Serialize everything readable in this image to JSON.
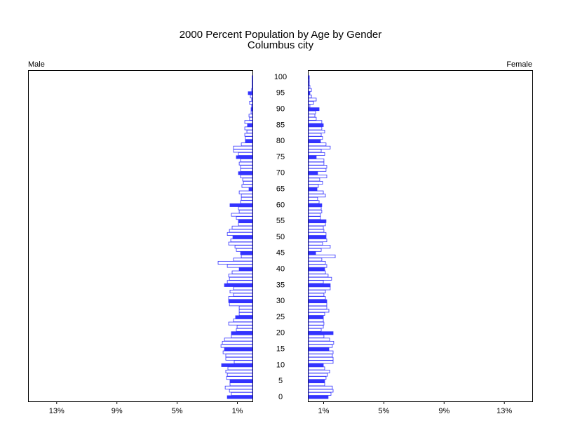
{
  "chart_data": {
    "type": "pyramid",
    "title": "2000 Percent Population by Age by Gender",
    "subtitle": "Columbus city",
    "categories": [
      "0",
      null,
      null,
      null,
      null,
      "5",
      null,
      null,
      null,
      null,
      "10",
      null,
      null,
      null,
      null,
      "15",
      null,
      null,
      null,
      null,
      "20",
      null,
      null,
      null,
      null,
      "25",
      null,
      null,
      null,
      null,
      "30",
      null,
      null,
      null,
      null,
      "35",
      null,
      null,
      null,
      null,
      "40",
      null,
      null,
      null,
      null,
      "45",
      null,
      null,
      null,
      null,
      "50",
      null,
      null,
      null,
      null,
      "55",
      null,
      null,
      null,
      null,
      "60",
      null,
      null,
      null,
      null,
      "65",
      null,
      null,
      null,
      null,
      "70",
      null,
      null,
      null,
      null,
      "75",
      null,
      null,
      null,
      null,
      "80",
      null,
      null,
      null,
      null,
      "85",
      null,
      null,
      null,
      null,
      "90",
      null,
      null,
      null,
      null,
      "95",
      null,
      null,
      null,
      null,
      "100"
    ],
    "series": [
      {
        "name": "Male",
        "color": "#3333ff",
        "values": [
          1.67,
          1.4,
          1.53,
          1.81,
          1.49,
          1.49,
          1.72,
          1.67,
          1.77,
          1.63,
          2.05,
          1.21,
          1.77,
          1.77,
          1.95,
          1.86,
          2.09,
          2.0,
          1.86,
          1.4,
          1.4,
          1.07,
          1.02,
          1.58,
          1.26,
          1.12,
          0.88,
          0.88,
          0.88,
          1.53,
          1.58,
          1.58,
          1.26,
          1.49,
          1.26,
          1.86,
          1.67,
          1.53,
          1.58,
          1.35,
          0.88,
          1.67,
          2.28,
          1.26,
          0.74,
          0.79,
          1.07,
          1.16,
          1.58,
          1.44,
          1.3,
          1.67,
          1.53,
          1.35,
          0.93,
          0.93,
          1.07,
          1.4,
          0.88,
          0.93,
          1.49,
          0.79,
          0.74,
          0.74,
          0.88,
          0.23,
          0.7,
          0.6,
          0.65,
          0.79,
          0.93,
          0.79,
          0.79,
          0.88,
          0.79,
          1.07,
          0.93,
          1.26,
          1.26,
          0.74,
          0.47,
          0.47,
          0.51,
          0.37,
          0.51,
          0.33,
          0.51,
          0.19,
          0.23,
          0.09,
          0.09,
          0.05,
          0.19,
          0.05,
          0.14,
          0.28,
          0.05,
          0.02,
          0.02,
          0.02,
          0.02
        ]
      },
      {
        "name": "Female",
        "color": "#3333ff",
        "values": [
          1.3,
          1.49,
          1.63,
          1.58,
          1.07,
          1.07,
          1.16,
          1.26,
          1.4,
          1.07,
          0.98,
          1.63,
          1.63,
          1.58,
          1.63,
          1.35,
          1.58,
          1.67,
          1.4,
          1.02,
          1.63,
          0.84,
          0.98,
          1.02,
          0.98,
          0.98,
          1.07,
          1.35,
          1.21,
          1.21,
          1.21,
          1.12,
          1.02,
          1.12,
          1.44,
          1.44,
          0.98,
          1.53,
          1.3,
          1.12,
          1.07,
          1.21,
          1.12,
          0.88,
          1.77,
          0.47,
          0.84,
          1.44,
          0.93,
          1.21,
          1.16,
          1.16,
          1.02,
          0.98,
          1.12,
          1.16,
          0.79,
          0.79,
          0.88,
          0.84,
          0.88,
          0.7,
          0.6,
          1.12,
          0.98,
          0.56,
          0.65,
          0.93,
          0.74,
          1.21,
          0.6,
          1.16,
          1.21,
          1.02,
          1.02,
          0.51,
          1.07,
          0.84,
          1.44,
          1.16,
          0.79,
          0.93,
          0.84,
          1.07,
          0.88,
          0.98,
          0.88,
          0.51,
          0.42,
          0.47,
          0.7,
          0.09,
          0.33,
          0.51,
          0.19,
          0.09,
          0.19,
          0.09,
          0.05,
          0.05,
          0.05
        ]
      }
    ],
    "xlim": [
      0,
      14.9
    ],
    "xticks": [
      {
        "value": 1,
        "label": "1%"
      },
      {
        "value": 5,
        "label": "5%"
      },
      {
        "value": 9,
        "label": "9%"
      },
      {
        "value": 13,
        "label": "13%"
      }
    ]
  }
}
